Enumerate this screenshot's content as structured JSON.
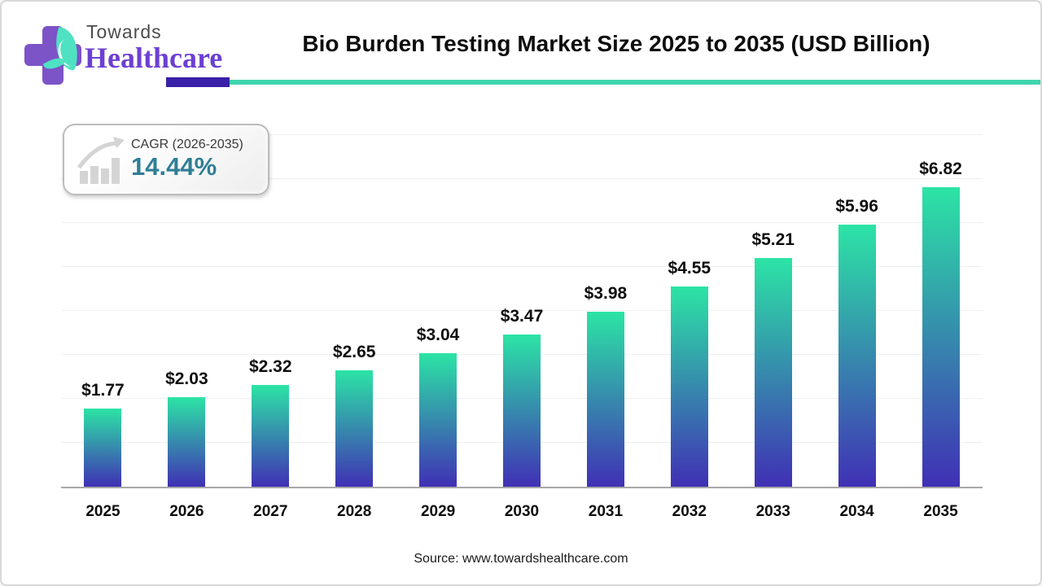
{
  "header": {
    "logo": {
      "line1": "Towards",
      "line2": "Healthcare"
    },
    "title": "Bio Burden Testing Market Size 2025 to 2035 (USD Billion)"
  },
  "cagr_badge": {
    "icon": "bar-growth-arrow-icon",
    "label": "CAGR (2026-2035)",
    "value": "14.44%"
  },
  "chart_data": {
    "type": "bar",
    "title": "Bio Burden Testing Market Size 2025 to 2035 (USD Billion)",
    "categories": [
      "2025",
      "2026",
      "2027",
      "2028",
      "2029",
      "2030",
      "2031",
      "2032",
      "2033",
      "2034",
      "2035"
    ],
    "values": [
      1.77,
      2.03,
      2.32,
      2.65,
      3.04,
      3.47,
      3.98,
      4.55,
      5.21,
      5.96,
      6.82
    ],
    "value_labels": [
      "$1.77",
      "$2.03",
      "$2.32",
      "$2.65",
      "$3.04",
      "$3.47",
      "$3.98",
      "$4.55",
      "$5.21",
      "$5.96",
      "$6.82"
    ],
    "xlabel": "",
    "ylabel": "",
    "ylim": [
      0,
      8.26
    ],
    "gridline_step": 1,
    "grid": "horizontal-faint",
    "legend": "none",
    "bar_orientation": "vertical"
  },
  "footer": {
    "source": "Source: www.towardshealthcare.com"
  },
  "colors": {
    "bar_top": "#2ce4a5",
    "bar_bottom": "#4030b5",
    "axis": "#a8a8a8",
    "gridline": "#efefef",
    "divider_purple": "#3a20a8",
    "divider_teal": "#3fd5ad",
    "cagr_value": "#2e7f95",
    "logo_purple": "#7d53c8",
    "logo_leaf": "#4fe2c2",
    "title_text": "#0d0d0d"
  }
}
